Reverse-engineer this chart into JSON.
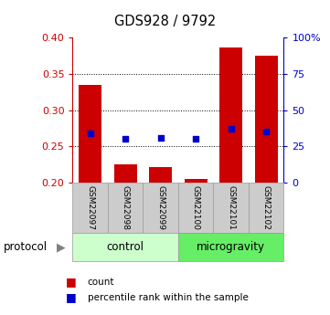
{
  "title": "GDS928 / 9792",
  "samples": [
    "GSM22097",
    "GSM22098",
    "GSM22099",
    "GSM22100",
    "GSM22101",
    "GSM22102"
  ],
  "bar_tops": [
    0.335,
    0.225,
    0.222,
    0.205,
    0.387,
    0.375
  ],
  "bar_base": 0.2,
  "percentile_values": [
    0.268,
    0.261,
    0.262,
    0.26,
    0.275,
    0.271
  ],
  "ylim_left": [
    0.2,
    0.4
  ],
  "ylim_right": [
    0,
    100
  ],
  "yticks_left": [
    0.2,
    0.25,
    0.3,
    0.35,
    0.4
  ],
  "yticks_right": [
    0,
    25,
    50,
    75,
    100
  ],
  "ytick_labels_right": [
    "0",
    "25",
    "50",
    "75",
    "100%"
  ],
  "bar_color": "#cc0000",
  "percentile_color": "#0000cc",
  "control_color": "#ccffcc",
  "microgravity_color": "#66ee66",
  "label_bg_color": "#cccccc",
  "protocol_label": "protocol",
  "control_label": "control",
  "microgravity_label": "microgravity",
  "legend_count_text": "count",
  "legend_percentile_text": "percentile rank within the sample",
  "bar_width": 0.65
}
